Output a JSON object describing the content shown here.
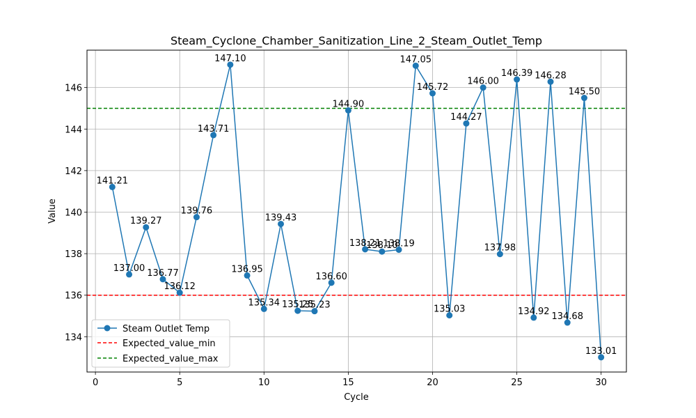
{
  "chart_data": {
    "type": "line",
    "title": "Steam_Cyclone_Chamber_Sanitization_Line_2_Steam_Outlet_Temp",
    "xlabel": "Cycle",
    "ylabel": "Value",
    "xlim": [
      -0.5,
      31.5
    ],
    "ylim": [
      132.3,
      147.8
    ],
    "xticks": [
      0,
      5,
      10,
      15,
      20,
      25,
      30
    ],
    "yticks": [
      134,
      136,
      138,
      140,
      142,
      144,
      146
    ],
    "grid": true,
    "legend_position": "lower-left",
    "series": [
      {
        "name": "Steam Outlet Temp",
        "color": "#1f77b4",
        "x": [
          1,
          2,
          3,
          4,
          5,
          6,
          7,
          8,
          9,
          10,
          11,
          12,
          13,
          14,
          15,
          16,
          17,
          18,
          19,
          20,
          21,
          22,
          23,
          24,
          25,
          26,
          27,
          28,
          29,
          30
        ],
        "values": [
          141.21,
          137.0,
          139.27,
          136.77,
          136.12,
          139.76,
          143.71,
          147.1,
          136.95,
          135.34,
          139.43,
          135.25,
          135.23,
          136.6,
          144.9,
          138.21,
          138.1,
          138.19,
          147.05,
          145.72,
          135.03,
          144.27,
          146.0,
          137.98,
          146.39,
          134.92,
          146.28,
          134.68,
          145.5,
          133.01
        ],
        "labels": [
          "141.21",
          "137.00",
          "139.27",
          "136.77",
          "136.12",
          "139.76",
          "143.71",
          "147.10",
          "136.95",
          "135.34",
          "139.43",
          "135.25",
          "135.23",
          "136.60",
          "144.90",
          "138.21",
          "138.10",
          "138.19",
          "147.05",
          "145.72",
          "135.03",
          "144.27",
          "146.00",
          "137.98",
          "146.39",
          "134.92",
          "146.28",
          "134.68",
          "145.50",
          "133.01"
        ]
      }
    ],
    "reference_lines": [
      {
        "name": "Expected_value_min",
        "value": 136,
        "color": "#ff0000",
        "style": "dashed"
      },
      {
        "name": "Expected_value_max",
        "value": 145,
        "color": "#008000",
        "style": "dashed"
      }
    ]
  }
}
